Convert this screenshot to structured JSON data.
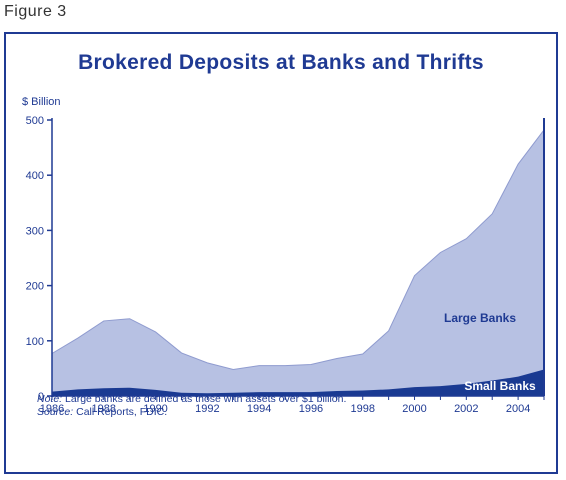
{
  "figure_label": "Figure 3",
  "note_prefix": "Note:",
  "note_text": "Large banks are defined as those with assets over $1 billion.",
  "source_prefix": "Source:",
  "source_text": "Call Reports, FDIC.",
  "colors": {
    "frame": "#1f3a93",
    "large_fill": "#b7c1e3",
    "small_fill": "#1a3a92",
    "text": "#1f3a93"
  },
  "chart_data": {
    "type": "area",
    "title": "Brokered Deposits at Banks and Thrifts",
    "ylabel": "$ Billion",
    "xlabel": "",
    "ylim": [
      0,
      500
    ],
    "xlim": [
      1986,
      2005
    ],
    "yticks": [
      "0",
      "100",
      "200",
      "300",
      "400",
      "500"
    ],
    "xticks": [
      "1986",
      "1988",
      "1990",
      "1992",
      "1994",
      "1996",
      "1998",
      "2000",
      "2002",
      "2004"
    ],
    "stacked": true,
    "x": [
      1986,
      1987,
      1988,
      1989,
      1990,
      1991,
      1992,
      1993,
      1994,
      1995,
      1996,
      1997,
      1998,
      1999,
      2000,
      2001,
      2002,
      2003,
      2004,
      2005
    ],
    "series": [
      {
        "name": "Small Banks",
        "values": [
          8,
          12,
          14,
          15,
          11,
          6,
          5,
          6,
          7,
          7,
          7,
          9,
          10,
          12,
          16,
          18,
          22,
          28,
          35,
          48
        ]
      },
      {
        "name": "Large Banks",
        "values": [
          69,
          93,
          122,
          125,
          105,
          72,
          55,
          42,
          48,
          48,
          50,
          59,
          66,
          106,
          202,
          242,
          263,
          302,
          385,
          434
        ]
      }
    ]
  }
}
